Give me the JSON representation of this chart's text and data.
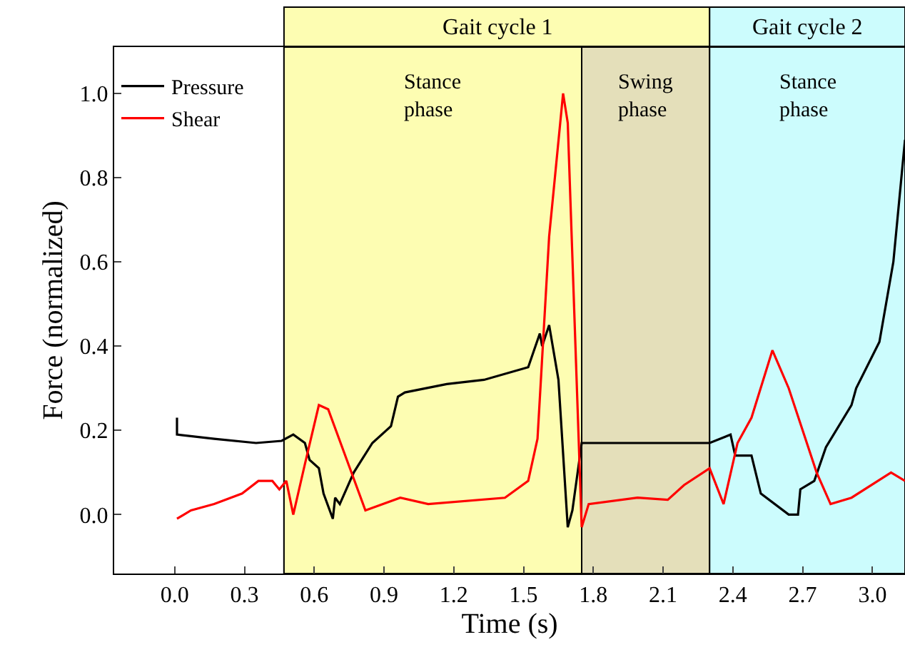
{
  "chart_data": {
    "type": "line",
    "xlabel": "Time (s)",
    "ylabel": "Force (normalized)",
    "xlim": [
      -0.26,
      3.14
    ],
    "ylim": [
      -0.14,
      1.11
    ],
    "xticks": [
      {
        "value": 0,
        "label": "0.0"
      },
      0.3,
      0.6,
      0.9,
      1.2,
      1.5,
      1.8,
      2.1,
      2.4,
      2.7,
      {
        "value": 3,
        "label": "3.0"
      }
    ],
    "yticks": [
      {
        "value": 0,
        "label": "0.0"
      },
      0.2,
      0.4,
      0.6,
      0.8,
      {
        "value": 1,
        "label": "1.0"
      }
    ],
    "legend": "top left",
    "grid": false,
    "line_style": "solid",
    "marker": "none",
    "bands": [
      {
        "axis": "x",
        "from": 0.47,
        "to": 2.3,
        "label": "Gait cycle 1",
        "color": "#fdfdb2"
      },
      {
        "axis": "x",
        "from": 2.3,
        "to": 3.14,
        "label": "Gait cycle 2",
        "color": "#ccfcfd"
      },
      {
        "axis": "x",
        "from": 0.47,
        "to": 1.75,
        "label": "Stance\nphase",
        "color": "#fdfdb2"
      },
      {
        "axis": "x",
        "from": 1.75,
        "to": 2.3,
        "label": "Swing\nphase",
        "color": "#e4dfba"
      },
      {
        "axis": "x",
        "from": 2.3,
        "to": 3.14,
        "label": "Stance\nphase",
        "color": "#ccfcfd"
      }
    ],
    "series": [
      {
        "name": "Pressure",
        "color": "#000000",
        "x": [
          0.01,
          0.01,
          0.17,
          0.35,
          0.46,
          0.51,
          0.56,
          0.58,
          0.62,
          0.64,
          0.68,
          0.69,
          0.71,
          0.77,
          0.85,
          0.93,
          0.96,
          0.99,
          1.17,
          1.33,
          1.52,
          1.57,
          1.58,
          1.61,
          1.65,
          1.69,
          1.71,
          1.74,
          1.75,
          2.17,
          2.3,
          2.39,
          2.41,
          2.48,
          2.52,
          2.64,
          2.68,
          2.69,
          2.75,
          2.8,
          2.91,
          2.93,
          3.03,
          3.09,
          3.14
        ],
        "values": [
          0.23,
          0.19,
          0.18,
          0.17,
          0.175,
          0.19,
          0.17,
          0.13,
          0.11,
          0.05,
          -0.01,
          0.04,
          0.025,
          0.1,
          0.17,
          0.21,
          0.28,
          0.29,
          0.31,
          0.32,
          0.35,
          0.43,
          0.4,
          0.45,
          0.32,
          -0.03,
          0.01,
          0.13,
          0.17,
          0.17,
          0.17,
          0.19,
          0.14,
          0.14,
          0.05,
          0.0,
          0.0,
          0.06,
          0.08,
          0.16,
          0.26,
          0.3,
          0.41,
          0.6,
          0.89
        ]
      },
      {
        "name": "Shear",
        "color": "#ff0000",
        "x": [
          0.01,
          0.07,
          0.17,
          0.29,
          0.36,
          0.42,
          0.45,
          0.48,
          0.51,
          0.56,
          0.62,
          0.66,
          0.76,
          0.82,
          0.97,
          1.09,
          1.42,
          1.52,
          1.56,
          1.61,
          1.67,
          1.69,
          1.75,
          1.78,
          1.99,
          2.12,
          2.19,
          2.3,
          2.36,
          2.42,
          2.48,
          2.57,
          2.64,
          2.76,
          2.82,
          2.91,
          3.08,
          3.14
        ],
        "values": [
          -0.01,
          0.01,
          0.025,
          0.05,
          0.08,
          0.08,
          0.06,
          0.08,
          0.0,
          0.12,
          0.26,
          0.25,
          0.1,
          0.01,
          0.04,
          0.025,
          0.04,
          0.08,
          0.18,
          0.66,
          1.0,
          0.93,
          -0.03,
          0.025,
          0.04,
          0.035,
          0.07,
          0.11,
          0.025,
          0.17,
          0.23,
          0.39,
          0.3,
          0.1,
          0.025,
          0.04,
          0.1,
          0.08
        ]
      }
    ]
  }
}
